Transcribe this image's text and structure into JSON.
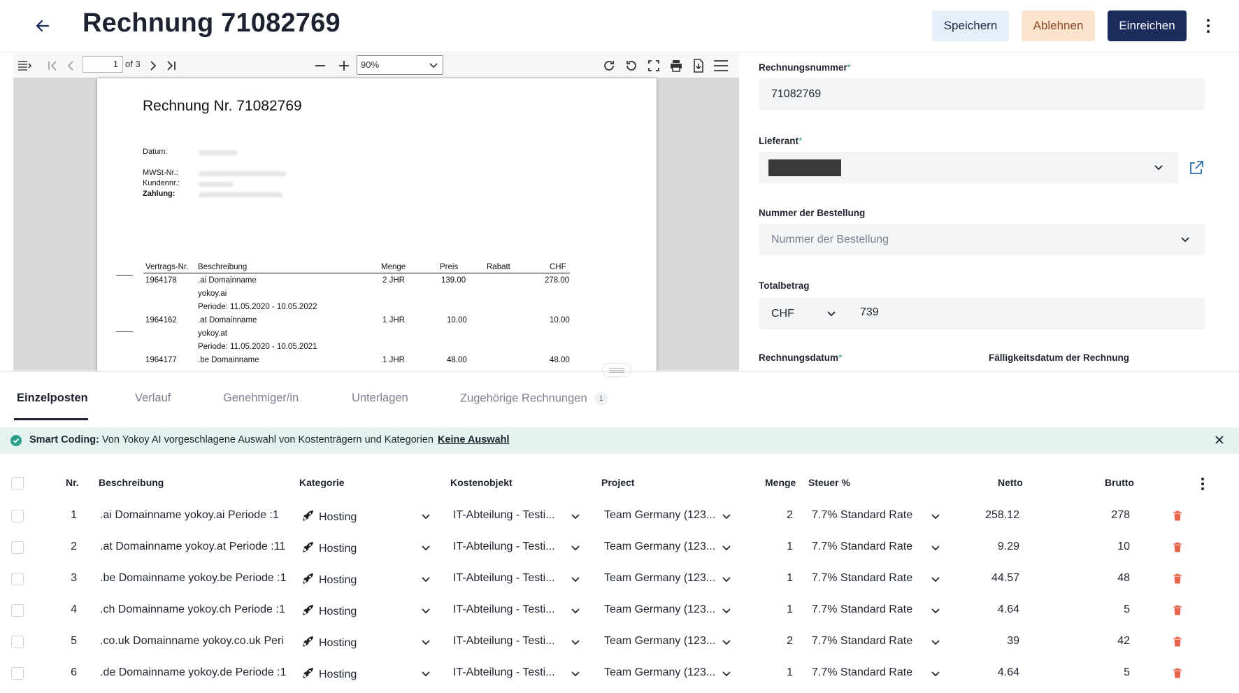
{
  "header": {
    "title": "Rechnung 71082769",
    "save_label": "Speichern",
    "reject_label": "Ablehnen",
    "submit_label": "Einreichen"
  },
  "viewer": {
    "page_current": "1",
    "page_of": "of 3",
    "zoom": "90%"
  },
  "pdf": {
    "title": "Rechnung Nr. 71082769",
    "labels": {
      "datum": "Datum:",
      "mwst": "MWSt-Nr.:",
      "kunden": "Kundennr.:",
      "zahlung": "Zahlung:"
    },
    "columns": [
      "Vertrags-Nr.",
      "Beschreibung",
      "Menge",
      "Preis",
      "Rabatt",
      "CHF"
    ],
    "rows": [
      {
        "nr": "1964178",
        "desc": ".ai Domainname",
        "domain": "yokoy.ai",
        "period": "Periode: 11.05.2020 - 10.05.2022",
        "menge": "2 JHR",
        "preis": "139.00",
        "chf": "278.00"
      },
      {
        "nr": "1964162",
        "desc": ".at Domainname",
        "domain": "yokoy.at",
        "period": "Periode: 11.05.2020 - 10.05.2021",
        "menge": "1 JHR",
        "preis": "10.00",
        "chf": "10.00"
      },
      {
        "nr": "1964177",
        "desc": ".be Domainname",
        "menge": "1 JHR",
        "preis": "48.00",
        "chf": "48.00"
      }
    ]
  },
  "form": {
    "invoice_number_label": "Rechnungsnummer",
    "invoice_number_value": "71082769",
    "supplier_label": "Lieferant",
    "order_number_label": "Nummer der Bestellung",
    "order_number_placeholder": "Nummer der Bestellung",
    "total_label": "Totalbetrag",
    "currency": "CHF",
    "total_value": "739",
    "invoice_date_label": "Rechnungsdatum",
    "due_date_label": "Fälligkeitsdatum der Rechnung",
    "required_marker": "*"
  },
  "tabs": [
    {
      "label": "Einzelposten"
    },
    {
      "label": "Verlauf"
    },
    {
      "label": "Genehmiger/in"
    },
    {
      "label": "Unterlagen"
    },
    {
      "label": "Zugehörige Rechnungen",
      "count": "1"
    }
  ],
  "banner": {
    "title": "Smart Coding:",
    "text": "Von Yokoy AI vorgeschlagene Auswahl von Kostenträgern und Kategorien",
    "link": "Keine Auswahl"
  },
  "table": {
    "headers": [
      "Nr.",
      "Beschreibung",
      "Kategorie",
      "Kostenobjekt",
      "Project",
      "Menge",
      "Steuer %",
      "Netto",
      "Brutto"
    ],
    "rows": [
      {
        "nr": "1",
        "desc": ".ai Domainname yokoy.ai Periode :1",
        "kategorie": "Hosting",
        "kostenobjekt": "IT-Abteilung - Testi...",
        "project": "Team Germany (123...",
        "menge": "2",
        "steuer": "7.7% Standard Rate",
        "netto": "258.12",
        "brutto": "278"
      },
      {
        "nr": "2",
        "desc": ".at Domainname yokoy.at Periode :11",
        "kategorie": "Hosting",
        "kostenobjekt": "IT-Abteilung - Testi...",
        "project": "Team Germany (123...",
        "menge": "1",
        "steuer": "7.7% Standard Rate",
        "netto": "9.29",
        "brutto": "10"
      },
      {
        "nr": "3",
        "desc": ".be Domainname yokoy.be Periode :1",
        "kategorie": "Hosting",
        "kostenobjekt": "IT-Abteilung - Testi...",
        "project": "Team Germany (123...",
        "menge": "1",
        "steuer": "7.7% Standard Rate",
        "netto": "44.57",
        "brutto": "48"
      },
      {
        "nr": "4",
        "desc": ".ch Domainname yokoy.ch Periode :1",
        "kategorie": "Hosting",
        "kostenobjekt": "IT-Abteilung - Testi...",
        "project": "Team Germany (123...",
        "menge": "1",
        "steuer": "7.7% Standard Rate",
        "netto": "4.64",
        "brutto": "5"
      },
      {
        "nr": "5",
        "desc": ".co.uk Domainname yokoy.co.uk Peri",
        "kategorie": "Hosting",
        "kostenobjekt": "IT-Abteilung - Testi...",
        "project": "Team Germany (123...",
        "menge": "2",
        "steuer": "7.7% Standard Rate",
        "netto": "39",
        "brutto": "42"
      },
      {
        "nr": "6",
        "desc": ".de Domainname yokoy.de Periode :1",
        "kategorie": "Hosting",
        "kostenobjekt": "IT-Abteilung - Testi...",
        "project": "Team Germany (123...",
        "menge": "1",
        "steuer": "7.7% Standard Rate",
        "netto": "4.64",
        "brutto": "5"
      }
    ]
  },
  "colors": {
    "primary": "#1b2b5b",
    "reject_bg": "#fbe3cd",
    "save_bg": "#e6eef7",
    "banner_bg": "#e4f3ef",
    "success": "#2b9e8a",
    "delete": "#e8634a"
  },
  "icons": [
    "arrow-back-icon",
    "more-vert-icon",
    "sidebar-toggle-icon",
    "first-page-icon",
    "prev-page-icon",
    "next-page-icon",
    "last-page-icon",
    "zoom-out-icon",
    "zoom-in-icon",
    "rotate-cw-icon",
    "rotate-ccw-icon",
    "fullscreen-icon",
    "print-icon",
    "download-icon",
    "menu-icon",
    "chevron-down-icon",
    "external-link-icon",
    "check-circle-icon",
    "close-icon",
    "rocket-icon",
    "trash-icon"
  ]
}
